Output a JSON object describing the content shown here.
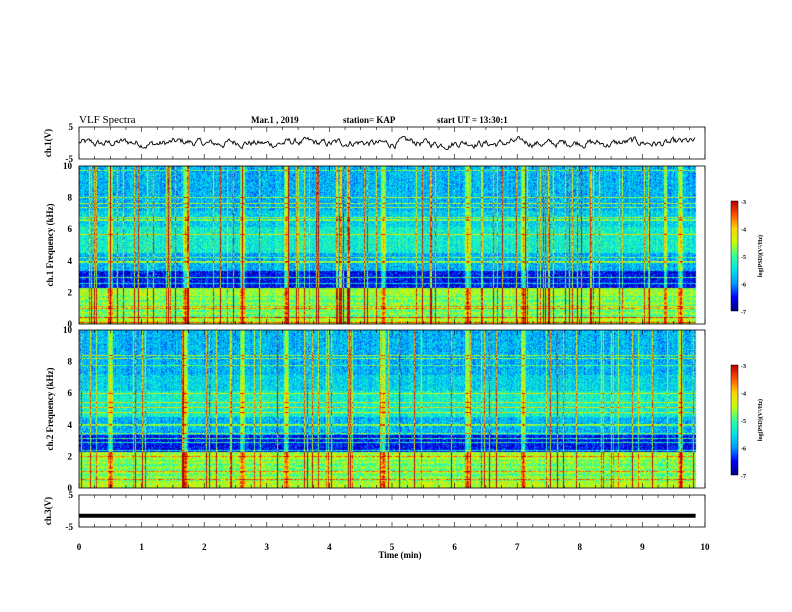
{
  "header": {
    "title": "VLF Spectra",
    "date": "Mar.1 , 2019",
    "station": "station= KAP",
    "start": "start UT = 13:30:1"
  },
  "colors": {
    "waveform": "#000000",
    "colormap": [
      "#00007f",
      "#0000ff",
      "#0099ff",
      "#00e5e5",
      "#33ff99",
      "#c8ff00",
      "#ffd200",
      "#ff5000",
      "#b40000"
    ]
  },
  "chart_data": [
    {
      "type": "line",
      "id": "ch1-waveform",
      "ylabel": "ch.1(V)",
      "ylim": [
        -5,
        5
      ],
      "ytick_labels": [
        "5",
        "-5"
      ],
      "x_range_min": [
        0,
        9.85
      ],
      "y_band": [
        -1,
        1
      ],
      "color": "#000000"
    },
    {
      "type": "heatmap",
      "id": "ch1-spectrogram",
      "ylabel": "ch.1 Frequency (kHz)",
      "xlim": [
        0,
        10
      ],
      "ylim": [
        0,
        10
      ],
      "data_xmax": 9.85,
      "ytick_labels": [
        "0",
        "2",
        "4",
        "6",
        "8",
        "10"
      ],
      "colorbar": {
        "label": "log(PSD)(V²/Hz)",
        "range": [
          -7,
          -3
        ],
        "tick_labels": [
          "-3",
          "-4",
          "-5",
          "-6",
          "-7"
        ]
      },
      "bright_bursts_min": [
        0.5,
        1.7,
        2.6,
        3.3,
        4.85,
        6.2,
        7.1,
        9.6
      ]
    },
    {
      "type": "heatmap",
      "id": "ch2-spectrogram",
      "ylabel": "ch.2 Frequency (kHz)",
      "xlim": [
        0,
        10
      ],
      "ylim": [
        0,
        10
      ],
      "data_xmax": 9.85,
      "ytick_labels": [
        "0",
        "2",
        "4",
        "6",
        "8",
        "10"
      ],
      "colorbar": {
        "label": "log(PSD)(V²/Hz)",
        "range": [
          -7,
          -3
        ],
        "tick_labels": [
          "-3",
          "-4",
          "-5",
          "-6",
          "-7"
        ]
      },
      "bright_bursts_min": [
        0.5,
        1.7,
        2.6,
        3.3,
        4.85,
        6.2,
        7.1,
        9.6
      ]
    },
    {
      "type": "line",
      "id": "ch3-waveform",
      "ylabel": "ch.3(V)",
      "ylim": [
        -5,
        5
      ],
      "ytick_labels": [
        "5",
        "-5"
      ],
      "x_range_min": [
        0,
        9.85
      ],
      "y_level": -1.5,
      "color": "#000000"
    }
  ],
  "x_axis": {
    "label": "Time (min)",
    "xlim": [
      0,
      10
    ],
    "tick_labels": [
      "0",
      "1",
      "2",
      "3",
      "4",
      "5",
      "6",
      "7",
      "8",
      "9",
      "10"
    ]
  }
}
